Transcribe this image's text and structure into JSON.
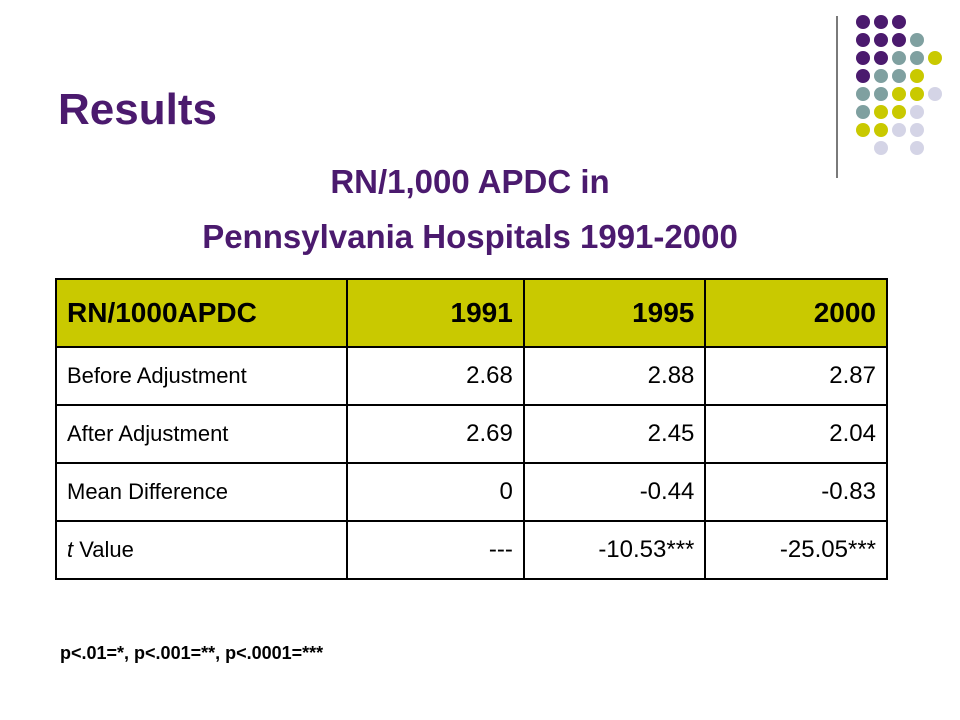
{
  "slide": {
    "title": "Results",
    "subtitle_line1": "RN/1,000 APDC in",
    "subtitle_line2": "Pennsylvania Hospitals 1991-2000"
  },
  "table": {
    "headers": [
      "RN/1000APDC",
      "1991",
      "1995",
      "2000"
    ],
    "rows": [
      {
        "label": "Before Adjustment",
        "values": [
          "2.68",
          "2.88",
          "2.87"
        ]
      },
      {
        "label": "After Adjustment",
        "values": [
          "2.69",
          "2.45",
          "2.04"
        ]
      },
      {
        "label": "Mean Difference",
        "values": [
          "0",
          "-0.44",
          "-0.83"
        ]
      },
      {
        "label_italic": "t",
        "label_rest": " Value",
        "values": [
          "---",
          "-10.53***",
          "-25.05***"
        ]
      }
    ]
  },
  "footnote": "p<.01=*, p<.001=**, p<.0001=***",
  "colors": {
    "title": "#4b1a6e",
    "header_fill": "#c9c900",
    "dot_purple": "#4b1a6e",
    "dot_teal": "#7fa0a0",
    "dot_olive": "#c9c900",
    "dot_lavender": "#d4d4e6"
  }
}
